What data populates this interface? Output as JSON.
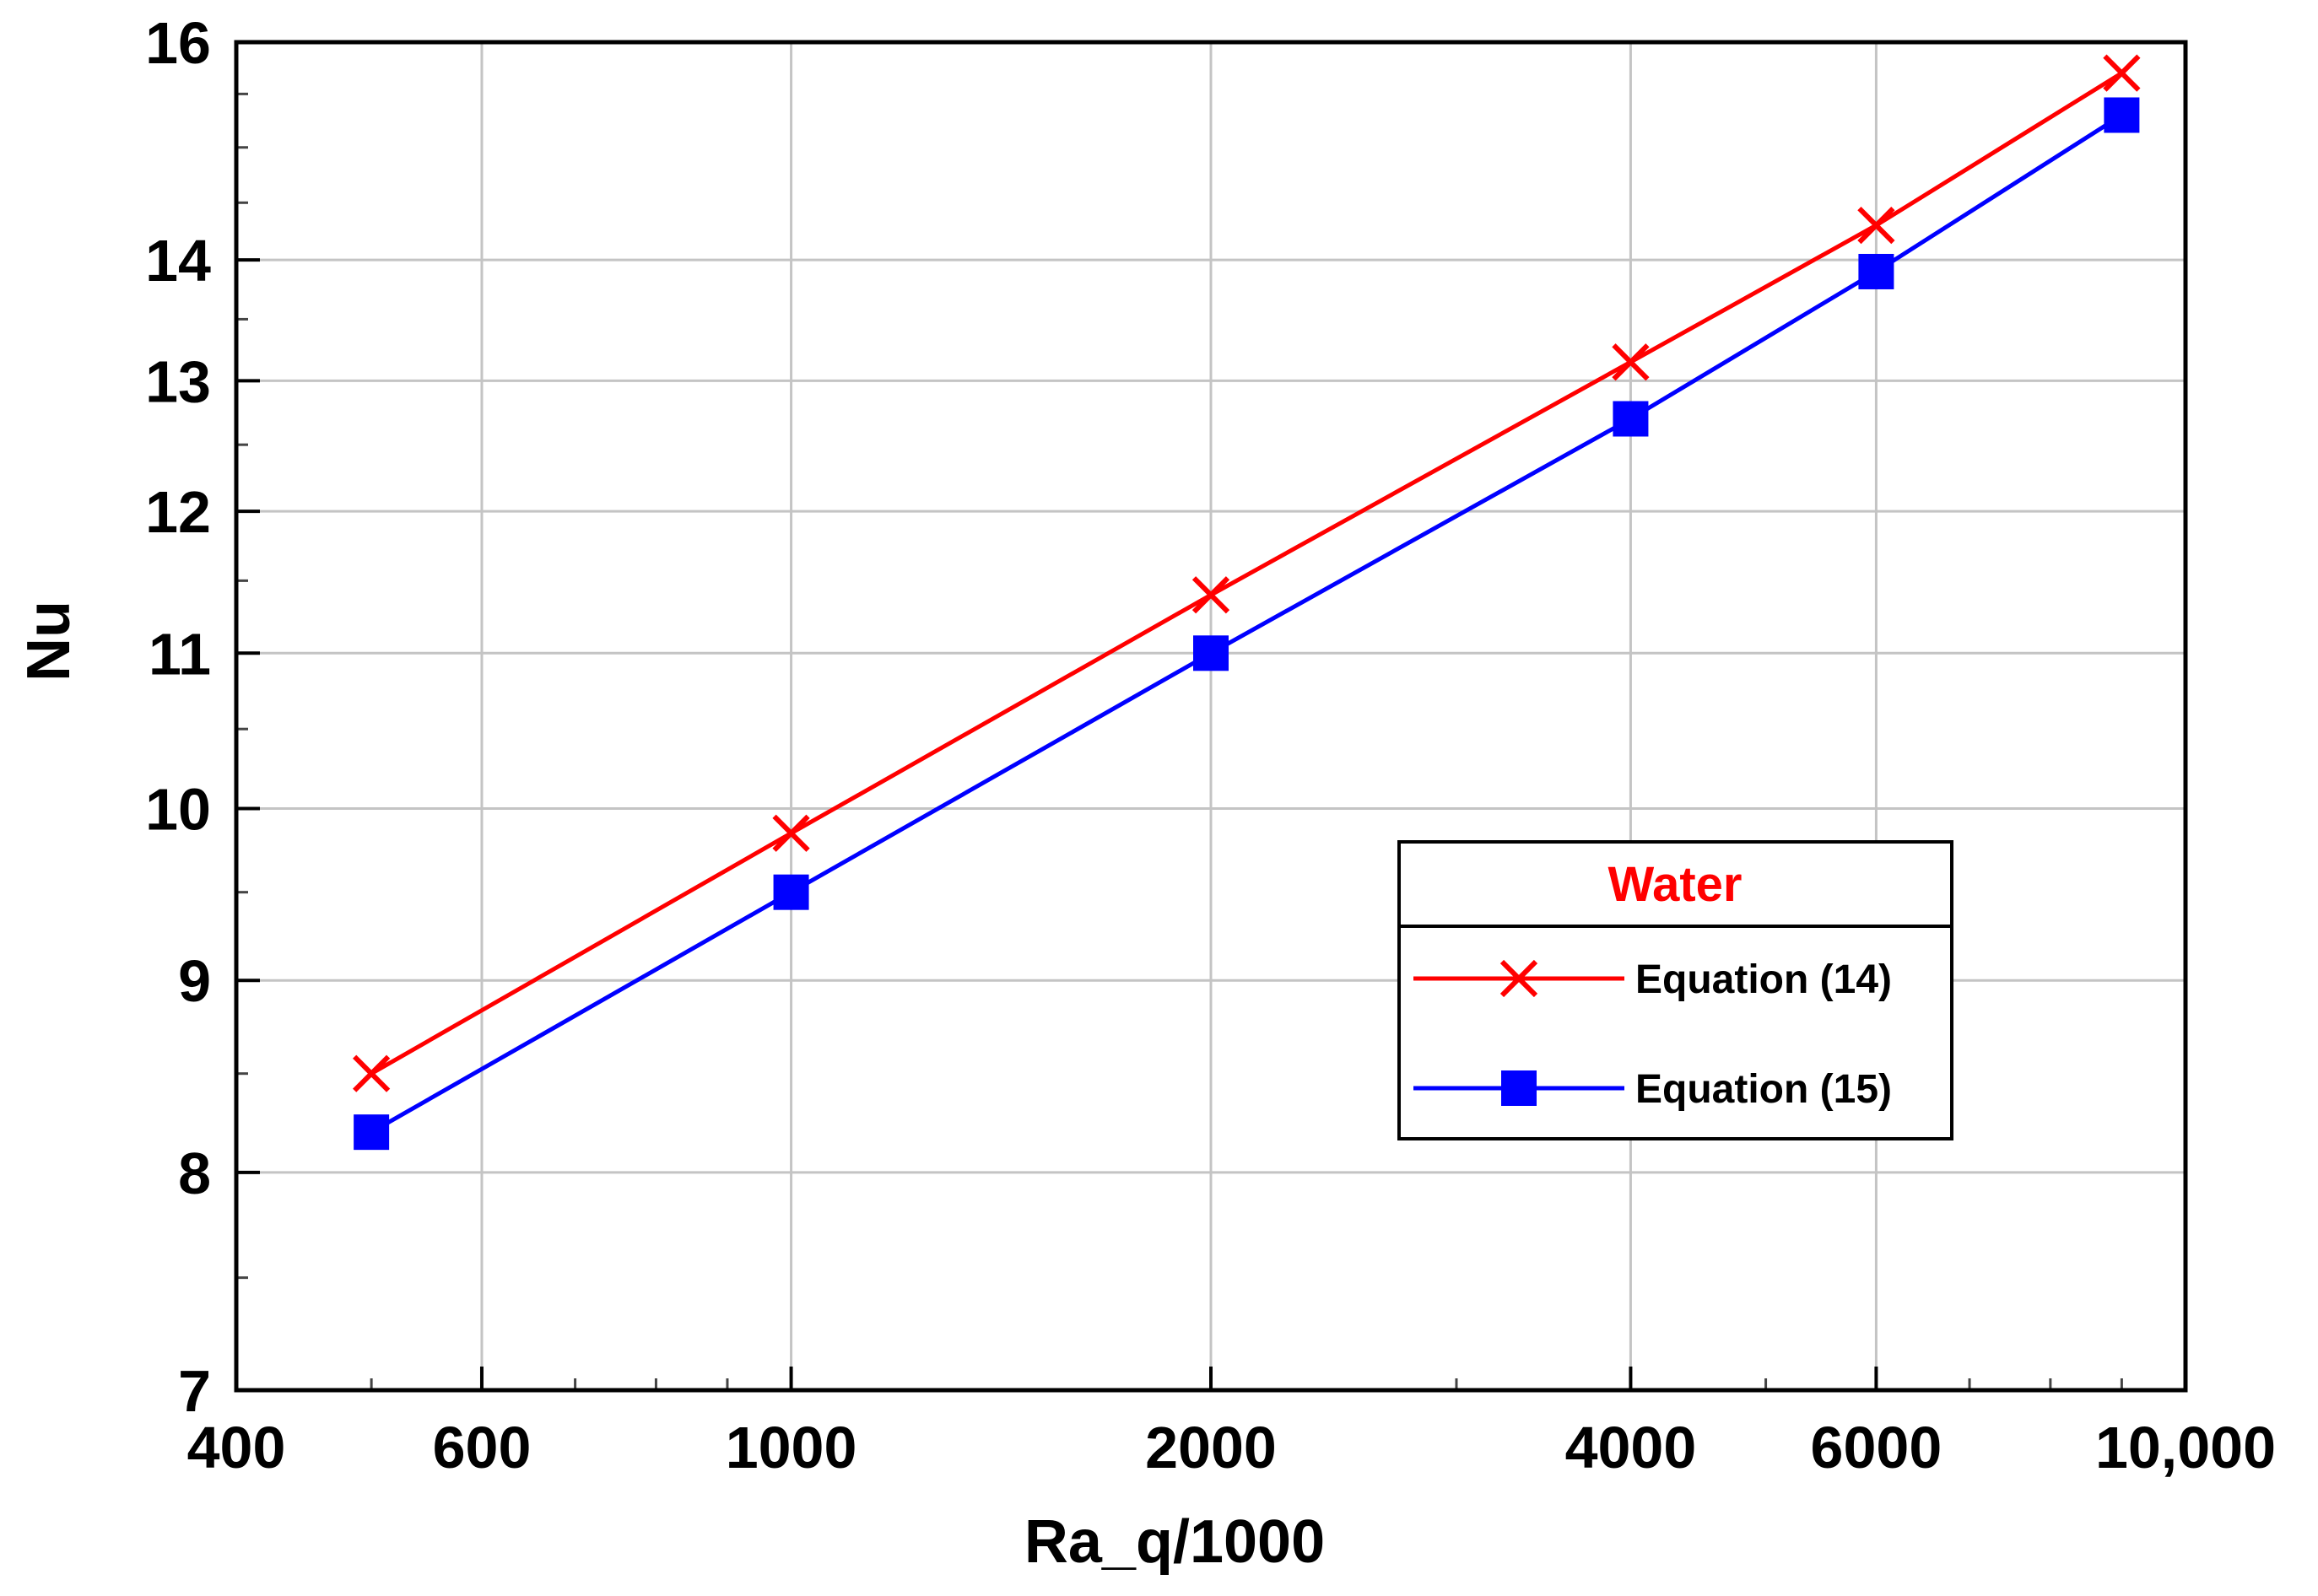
{
  "chart_data": {
    "type": "line",
    "x_scale": "log",
    "y_scale": "log",
    "xlabel": "Ra_q/1000",
    "ylabel": "Nu",
    "xlim": [
      400,
      10000
    ],
    "ylim": [
      7,
      16
    ],
    "x_ticks": [
      400,
      600,
      1000,
      2000,
      4000,
      6000,
      10000
    ],
    "x_tick_labels": [
      "400",
      "600",
      "1000",
      "2000",
      "4000",
      "6000",
      "10,000"
    ],
    "y_ticks": [
      7,
      8,
      9,
      10,
      11,
      12,
      13,
      14,
      16
    ],
    "y_tick_labels": [
      "7",
      "8",
      "9",
      "10",
      "11",
      "12",
      "13",
      "14",
      "16"
    ],
    "grid": true,
    "legend": {
      "title": "Water",
      "title_color": "#ff0000",
      "placement": "center-right"
    },
    "x": [
      500,
      1000,
      2000,
      4000,
      6000,
      9000
    ],
    "series": [
      {
        "name": "Equation (14)",
        "color": "#ff0000",
        "marker": "x",
        "values": [
          8.5,
          9.85,
          11.4,
          13.15,
          14.3,
          15.7
        ]
      },
      {
        "name": "Equation (15)",
        "color": "#0000ff",
        "marker": "square",
        "values": [
          8.2,
          9.5,
          11.0,
          12.7,
          13.9,
          15.3
        ]
      }
    ]
  }
}
